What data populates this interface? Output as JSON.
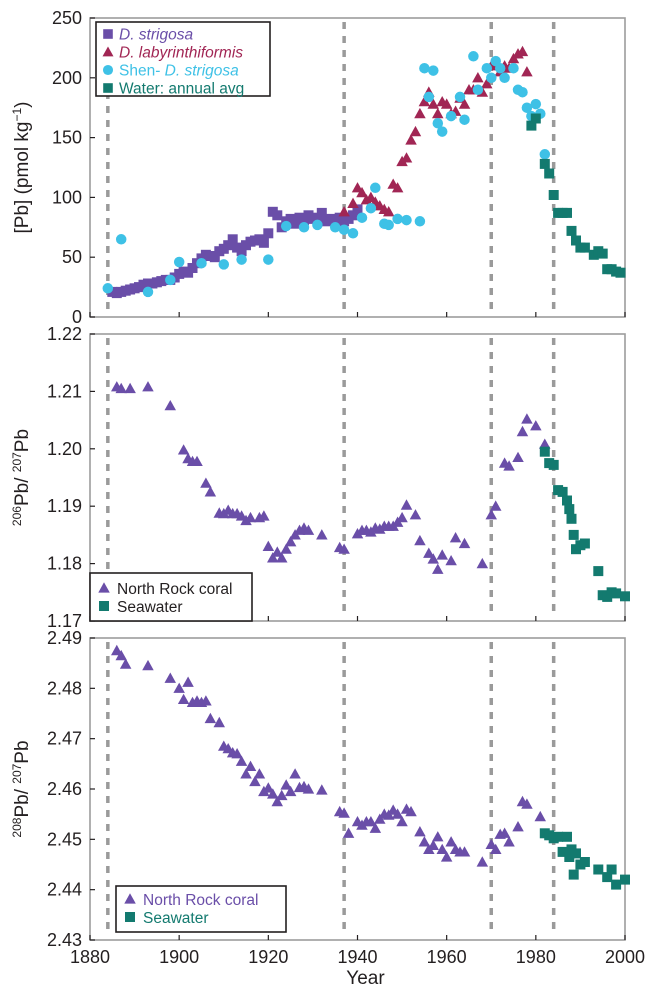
{
  "colors": {
    "purple": "#6a4ea8",
    "maroon": "#a12654",
    "cyan": "#3ec1e6",
    "teal": "#137a6f",
    "vline": "#9a9a9a"
  },
  "shared_x_axis": {
    "label": "Year",
    "min": 1880,
    "max": 2000,
    "ticks": [
      1880,
      1900,
      1920,
      1940,
      1960,
      1980,
      2000
    ],
    "tick_labels": [
      "1880",
      "1900",
      "1920",
      "1940",
      "1960",
      "1980",
      "2000"
    ],
    "reference_years": [
      1884,
      1937,
      1970,
      1984
    ]
  },
  "chart_data": [
    {
      "type": "scatter",
      "ylabel_main": "[Pb] (pmol kg",
      "ylabel_sup": "−1",
      "ylabel_end": ")",
      "ylim": [
        0,
        250
      ],
      "yticks": [
        0,
        50,
        100,
        150,
        200,
        250
      ],
      "ytick_labels": [
        "0",
        "50",
        "100",
        "150",
        "200",
        "250"
      ],
      "legend": {
        "placement": "top-left",
        "items": [
          {
            "prefix": "",
            "label": "D. strigosa",
            "italic": true,
            "marker": "square",
            "color": "#6a4ea8"
          },
          {
            "prefix": "",
            "label": "D. labyrinthiformis",
            "italic": true,
            "marker": "triangle",
            "color": "#a12654"
          },
          {
            "prefix": "Shen- ",
            "label": "D. strigosa",
            "italic": true,
            "marker": "circle",
            "color": "#3ec1e6"
          },
          {
            "prefix": "",
            "label": "Water: annual avg",
            "italic": false,
            "marker": "square",
            "color": "#137a6f"
          }
        ]
      },
      "series": [
        {
          "name": "D. strigosa",
          "marker": "square",
          "color": "#6a4ea8",
          "x": [
            1885,
            1886,
            1887,
            1888,
            1889,
            1890,
            1891,
            1892,
            1893,
            1894,
            1895,
            1896,
            1897,
            1898,
            1899,
            1900,
            1901,
            1902,
            1903,
            1904,
            1905,
            1906,
            1907,
            1908,
            1909,
            1910,
            1911,
            1912,
            1913,
            1914,
            1915,
            1916,
            1917,
            1918,
            1919,
            1920,
            1921,
            1922,
            1923,
            1924,
            1925,
            1926,
            1927,
            1928,
            1929,
            1930,
            1931,
            1932,
            1933,
            1934,
            1935,
            1936,
            1937,
            1938,
            1939,
            1940
          ],
          "y": [
            21,
            20,
            21,
            22,
            23,
            24,
            25,
            27,
            28,
            28,
            29,
            30,
            31,
            31,
            33,
            36,
            38,
            37,
            41,
            45,
            49,
            52,
            51,
            50,
            55,
            57,
            60,
            65,
            58,
            55,
            60,
            63,
            64,
            65,
            62,
            70,
            88,
            85,
            75,
            80,
            82,
            78,
            83,
            81,
            85,
            82,
            83,
            87,
            80,
            82,
            80,
            83,
            80,
            82,
            85,
            90
          ]
        },
        {
          "name": "D. labyrinthiformis",
          "marker": "triangle",
          "color": "#a12654",
          "x": [
            1937,
            1939,
            1940,
            1941,
            1942,
            1943,
            1944,
            1945,
            1946,
            1947,
            1948,
            1949,
            1950,
            1951,
            1952,
            1953,
            1954,
            1955,
            1956,
            1957,
            1958,
            1959,
            1960,
            1961,
            1962,
            1963,
            1964,
            1965,
            1966,
            1967,
            1968,
            1969,
            1970,
            1971,
            1972,
            1973,
            1974,
            1975,
            1976,
            1977,
            1978
          ],
          "y": [
            88,
            95,
            108,
            104,
            98,
            100,
            96,
            93,
            90,
            88,
            111,
            108,
            130,
            133,
            148,
            155,
            170,
            180,
            188,
            178,
            170,
            180,
            178,
            170,
            172,
            183,
            178,
            190,
            190,
            200,
            188,
            195,
            210,
            212,
            205,
            210,
            208,
            216,
            220,
            222,
            205
          ]
        },
        {
          "name": "Shen- D. strigosa",
          "marker": "circle",
          "color": "#3ec1e6",
          "x": [
            1884,
            1887,
            1893,
            1898,
            1900,
            1905,
            1910,
            1914,
            1920,
            1924,
            1928,
            1931,
            1935,
            1937,
            1939,
            1941,
            1943,
            1944,
            1946,
            1947,
            1949,
            1951,
            1954,
            1955,
            1956,
            1957,
            1958,
            1959,
            1961,
            1963,
            1964,
            1966,
            1967,
            1969,
            1970,
            1971,
            1972,
            1973,
            1975,
            1976,
            1977,
            1978,
            1979,
            1980,
            1981,
            1982
          ],
          "y": [
            24,
            65,
            21,
            31,
            46,
            45,
            44,
            48,
            48,
            76,
            75,
            77,
            75,
            73,
            70,
            83,
            91,
            108,
            78,
            77,
            82,
            81,
            80,
            208,
            184,
            206,
            162,
            155,
            168,
            184,
            165,
            218,
            190,
            208,
            200,
            214,
            208,
            200,
            208,
            190,
            188,
            175,
            168,
            178,
            170,
            136
          ]
        },
        {
          "name": "Water: annual avg",
          "marker": "square",
          "color": "#137a6f",
          "x": [
            1979,
            1980,
            1982,
            1983,
            1984,
            1985,
            1986,
            1987,
            1988,
            1989,
            1990,
            1991,
            1993,
            1994,
            1995,
            1996,
            1997,
            1998,
            1999
          ],
          "y": [
            160,
            166,
            128,
            120,
            102,
            87,
            87,
            87,
            72,
            64,
            58,
            58,
            52,
            55,
            53,
            40,
            40,
            38,
            37
          ]
        }
      ]
    },
    {
      "type": "scatter",
      "ylabel_sup1": "206",
      "ylabel_mid": "Pb/ ",
      "ylabel_sup2": "207",
      "ylabel_end": "Pb",
      "ylim": [
        1.17,
        1.22
      ],
      "yticks": [
        1.17,
        1.18,
        1.19,
        1.2,
        1.21,
        1.22
      ],
      "ytick_labels": [
        "1.17",
        "1.18",
        "1.19",
        "1.20",
        "1.21",
        "1.22"
      ],
      "legend": {
        "placement": "bottom-left",
        "items": [
          {
            "label": "North Rock coral",
            "marker": "triangle",
            "color": "#6a4ea8"
          },
          {
            "label": "Seawater",
            "marker": "square",
            "color": "#137a6f"
          }
        ]
      },
      "series": [
        {
          "name": "North Rock coral",
          "marker": "triangle",
          "color": "#6a4ea8",
          "x": [
            1886,
            1887,
            1889,
            1893,
            1898,
            1901,
            1902,
            1903,
            1904,
            1906,
            1907,
            1909,
            1910,
            1911,
            1912,
            1913,
            1914,
            1915,
            1916,
            1918,
            1919,
            1920,
            1921,
            1922,
            1923,
            1924,
            1925,
            1926,
            1927,
            1928,
            1929,
            1932,
            1936,
            1937,
            1940,
            1941,
            1942,
            1943,
            1944,
            1945,
            1946,
            1947,
            1948,
            1949,
            1950,
            1951,
            1953,
            1954,
            1956,
            1957,
            1958,
            1959,
            1961,
            1962,
            1964,
            1968,
            1970,
            1971,
            1973,
            1974,
            1976,
            1977,
            1978,
            1980,
            1982
          ],
          "y": [
            1.2108,
            1.2105,
            1.2105,
            1.2108,
            1.2075,
            1.1998,
            1.1983,
            1.1978,
            1.1978,
            1.194,
            1.1925,
            1.1888,
            1.1887,
            1.1893,
            1.1887,
            1.1887,
            1.1883,
            1.1875,
            1.188,
            1.188,
            1.1883,
            1.183,
            1.181,
            1.182,
            1.181,
            1.1825,
            1.1838,
            1.185,
            1.1858,
            1.1862,
            1.1858,
            1.185,
            1.1828,
            1.1825,
            1.1852,
            1.1858,
            1.1858,
            1.1855,
            1.1862,
            1.186,
            1.1865,
            1.1865,
            1.1865,
            1.1872,
            1.188,
            1.1902,
            1.1885,
            1.184,
            1.1818,
            1.1808,
            1.179,
            1.1815,
            1.1805,
            1.1845,
            1.1835,
            1.18,
            1.1885,
            1.19,
            1.1975,
            1.197,
            1.1985,
            1.203,
            1.2052,
            1.204,
            1.2008
          ]
        },
        {
          "name": "Seawater",
          "marker": "square",
          "color": "#137a6f",
          "x": [
            1982,
            1983,
            1984,
            1985,
            1986,
            1987,
            1987.5,
            1988,
            1988.5,
            1989,
            1990,
            1991,
            1994,
            1995,
            1996,
            1997,
            1998,
            2000
          ],
          "y": [
            1.1995,
            1.1975,
            1.1972,
            1.1928,
            1.1925,
            1.191,
            1.1895,
            1.1878,
            1.185,
            1.1825,
            1.1832,
            1.1835,
            1.1787,
            1.1745,
            1.1742,
            1.175,
            1.1748,
            1.1743
          ]
        }
      ]
    },
    {
      "type": "scatter",
      "ylabel_sup1": "208",
      "ylabel_mid": "Pb/ ",
      "ylabel_sup2": "207",
      "ylabel_end": "Pb",
      "ylim": [
        2.43,
        2.49
      ],
      "yticks": [
        2.43,
        2.44,
        2.45,
        2.46,
        2.47,
        2.48,
        2.49
      ],
      "ytick_labels": [
        "2.43",
        "2.44",
        "2.45",
        "2.46",
        "2.47",
        "2.48",
        "2.49"
      ],
      "legend": {
        "placement": "bottom-left",
        "items": [
          {
            "label": "North Rock coral",
            "marker": "triangle",
            "color": "#6a4ea8"
          },
          {
            "label": "Seawater",
            "marker": "square",
            "color": "#137a6f"
          }
        ]
      },
      "series": [
        {
          "name": "North Rock coral",
          "marker": "triangle",
          "color": "#6a4ea8",
          "x": [
            1886,
            1887,
            1888,
            1893,
            1898,
            1900,
            1901,
            1902,
            1903,
            1904,
            1905,
            1906,
            1907,
            1909,
            1910,
            1911,
            1912,
            1913,
            1914,
            1915,
            1916,
            1917,
            1918,
            1919,
            1920,
            1921,
            1922,
            1923,
            1924,
            1925,
            1926,
            1927,
            1928,
            1929,
            1932,
            1936,
            1937,
            1938,
            1940,
            1941,
            1942,
            1943,
            1944,
            1945,
            1946,
            1947,
            1948,
            1949,
            1950,
            1951,
            1952,
            1954,
            1955,
            1956,
            1957,
            1958,
            1959,
            1960,
            1961,
            1962,
            1963,
            1964,
            1968,
            1970,
            1971,
            1972,
            1973,
            1974,
            1976,
            1977,
            1978,
            1981
          ],
          "y": [
            2.4875,
            2.4865,
            2.4848,
            2.4845,
            2.482,
            2.48,
            2.4778,
            2.4812,
            2.4772,
            2.4775,
            2.4772,
            2.4775,
            2.474,
            2.4732,
            2.4685,
            2.468,
            2.4672,
            2.467,
            2.4655,
            2.463,
            2.4645,
            2.4615,
            2.463,
            2.4595,
            2.4602,
            2.459,
            2.4575,
            2.4587,
            2.4608,
            2.4595,
            2.463,
            2.4603,
            2.4605,
            2.46,
            2.4598,
            2.4555,
            2.4552,
            2.4512,
            2.4535,
            2.4528,
            2.4535,
            2.4535,
            2.4522,
            2.454,
            2.455,
            2.4548,
            2.4558,
            2.455,
            2.4535,
            2.456,
            2.4555,
            2.4515,
            2.4495,
            2.448,
            2.4488,
            2.4505,
            2.448,
            2.4465,
            2.4495,
            2.448,
            2.4475,
            2.4475,
            2.4455,
            2.449,
            2.448,
            2.451,
            2.4512,
            2.4495,
            2.4525,
            2.4575,
            2.457,
            2.4545
          ]
        },
        {
          "name": "Seawater",
          "marker": "square",
          "color": "#137a6f",
          "x": [
            1982,
            1983,
            1984,
            1985,
            1986,
            1987,
            1987.5,
            1988,
            1988.5,
            1989,
            1990,
            1991,
            1994,
            1996,
            1997,
            1998,
            2000
          ],
          "y": [
            2.4512,
            2.4508,
            2.4502,
            2.4505,
            2.4475,
            2.4505,
            2.4465,
            2.448,
            2.443,
            2.4472,
            2.445,
            2.4455,
            2.444,
            2.4425,
            2.444,
            2.441,
            2.442
          ]
        }
      ]
    }
  ]
}
